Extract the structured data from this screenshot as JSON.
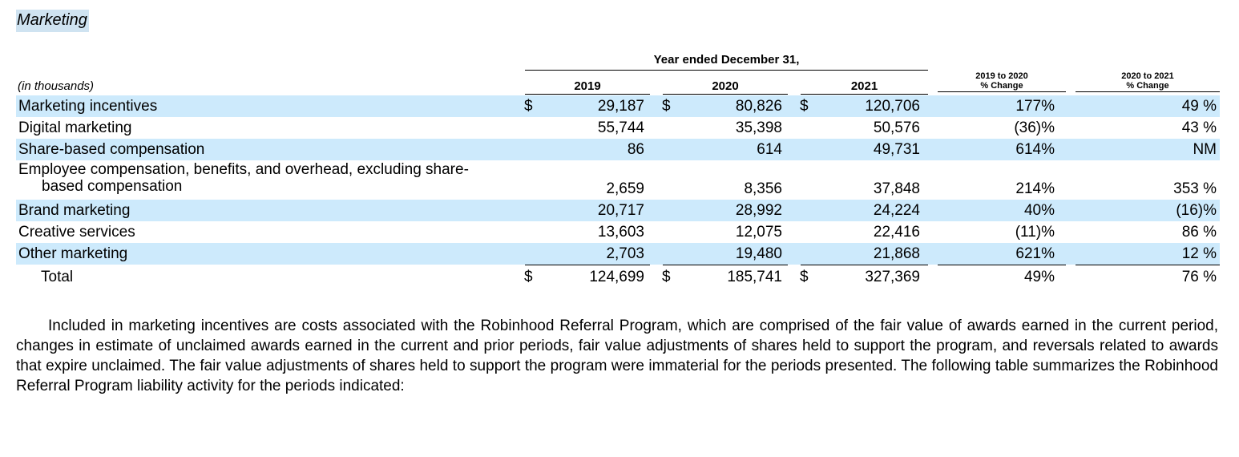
{
  "heading": "Marketing",
  "table": {
    "group_header": "Year ended December 31,",
    "units_label": "(in thousands)",
    "year_headers": [
      "2019",
      "2020",
      "2021"
    ],
    "change_headers": [
      {
        "line1": "2019 to 2020",
        "line2": "% Change"
      },
      {
        "line1": "2020 to 2021",
        "line2": "% Change"
      }
    ],
    "currency_symbol": "$",
    "rows": [
      {
        "label": "Marketing incentives",
        "v2019": "29,187",
        "v2020": "80,826",
        "v2021": "120,706",
        "chg1": "177%",
        "chg2": "49 %"
      },
      {
        "label": "Digital marketing",
        "v2019": "55,744",
        "v2020": "35,398",
        "v2021": "50,576",
        "chg1": "(36)%",
        "chg2": "43 %"
      },
      {
        "label": "Share-based compensation",
        "v2019": "86",
        "v2020": "614",
        "v2021": "49,731",
        "chg1": "614%",
        "chg2": "NM"
      },
      {
        "label_line1": "Employee compensation, benefits, and overhead, excluding share-",
        "label_line2": "based compensation",
        "v2019": "2,659",
        "v2020": "8,356",
        "v2021": "37,848",
        "chg1": "214%",
        "chg2": "353 %"
      },
      {
        "label": "Brand marketing",
        "v2019": "20,717",
        "v2020": "28,992",
        "v2021": "24,224",
        "chg1": "40%",
        "chg2": "(16)%"
      },
      {
        "label": "Creative services",
        "v2019": "13,603",
        "v2020": "12,075",
        "v2021": "22,416",
        "chg1": "(11)%",
        "chg2": "86 %"
      },
      {
        "label": "Other marketing",
        "v2019": "2,703",
        "v2020": "19,480",
        "v2021": "21,868",
        "chg1": "621%",
        "chg2": "12 %"
      }
    ],
    "total": {
      "label": "Total",
      "v2019": "124,699",
      "v2020": "185,741",
      "v2021": "327,369",
      "chg1": "49%",
      "chg2": "76 %"
    }
  },
  "paragraph": "Included in marketing incentives are costs associated with the Robinhood Referral Program, which are comprised of the fair value of awards earned in the current period, changes in estimate of unclaimed awards earned in the current and prior periods, fair value adjustments of shares held to support the program, and reversals related to awards that expire unclaimed. The fair value adjustments of shares held to support the program were immaterial for the periods presented. The following table summarizes the Robinhood Referral Program liability activity for the periods indicated:",
  "colors": {
    "row_shade": "#cdeafc",
    "heading_highlight": "#cfe3f1"
  }
}
